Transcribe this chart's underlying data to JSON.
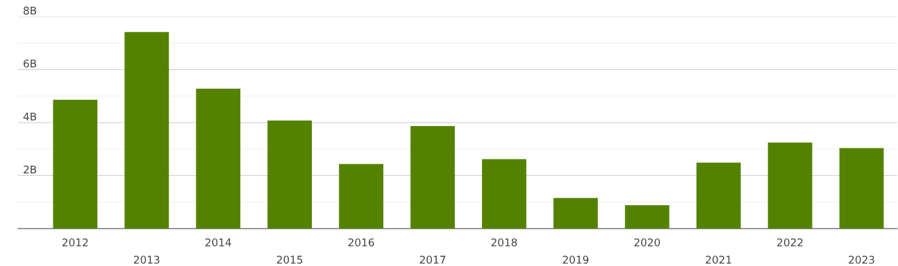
{
  "chart_data": {
    "type": "bar",
    "categories": [
      "2012",
      "2013",
      "2014",
      "2015",
      "2016",
      "2017",
      "2018",
      "2019",
      "2020",
      "2021",
      "2022",
      "2023"
    ],
    "values": [
      4.86,
      7.42,
      5.28,
      4.08,
      2.44,
      3.87,
      2.62,
      1.16,
      0.88,
      2.49,
      3.25,
      3.04
    ],
    "color": "#548200",
    "ylim": [
      0,
      8
    ],
    "yticks": [
      {
        "value": 1,
        "label": null
      },
      {
        "value": 2,
        "label": "2B"
      },
      {
        "value": 3,
        "label": null
      },
      {
        "value": 4,
        "label": "4B"
      },
      {
        "value": 5,
        "label": null
      },
      {
        "value": 6,
        "label": "6B"
      },
      {
        "value": 7,
        "label": null
      },
      {
        "value": 8,
        "label": "8B"
      }
    ],
    "grid": "y",
    "legend": false
  }
}
